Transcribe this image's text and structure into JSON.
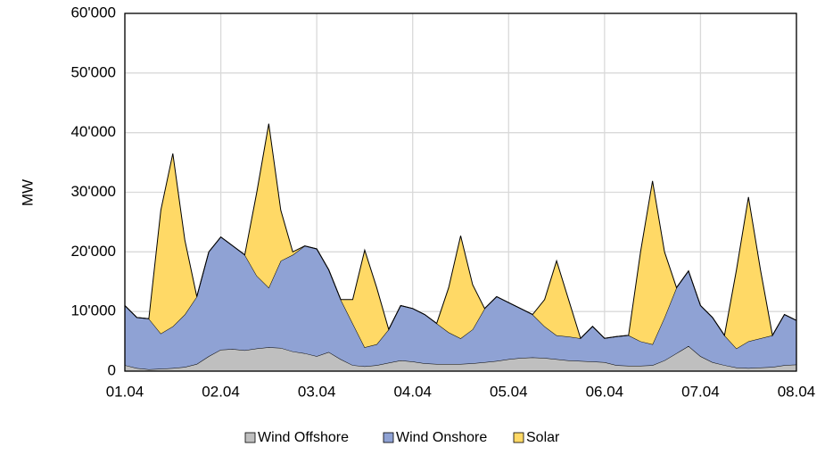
{
  "chart_data": {
    "type": "stacked_area",
    "ylabel": "MW",
    "x": [
      0,
      0.125,
      0.25,
      0.375,
      0.5,
      0.625,
      0.75,
      0.875,
      1,
      1.125,
      1.25,
      1.375,
      1.5,
      1.625,
      1.75,
      1.875,
      2,
      2.125,
      2.25,
      2.375,
      2.5,
      2.625,
      2.75,
      2.875,
      3,
      3.125,
      3.25,
      3.375,
      3.5,
      3.625,
      3.75,
      3.875,
      4,
      4.125,
      4.25,
      4.375,
      4.5,
      4.625,
      4.75,
      4.875,
      5,
      5.125,
      5.25,
      5.375,
      5.5,
      5.625,
      5.75,
      5.875,
      6,
      6.125,
      6.25,
      6.375,
      6.5,
      6.625,
      6.75,
      6.875,
      7
    ],
    "series": [
      {
        "name": "Wind Offshore",
        "color": "#bfbfbf",
        "values": [
          1000,
          500,
          300,
          400,
          500,
          700,
          1200,
          2500,
          3600,
          3700,
          3500,
          3800,
          4000,
          3900,
          3300,
          3000,
          2500,
          3200,
          2000,
          1000,
          800,
          1000,
          1400,
          1800,
          1600,
          1300,
          1200,
          1200,
          1200,
          1300,
          1500,
          1700,
          2000,
          2200,
          2300,
          2200,
          2000,
          1800,
          1700,
          1600,
          1500,
          1000,
          900,
          900,
          1000,
          1800,
          3000,
          4200,
          2500,
          1500,
          1000,
          600,
          500,
          600,
          700,
          1000,
          1100
        ]
      },
      {
        "name": "Wind Onshore",
        "color": "#8fa2d4",
        "values": [
          10000,
          8500,
          8500,
          5900,
          7000,
          8800,
          11300,
          17500,
          18900,
          17300,
          16000,
          12200,
          10000,
          14600,
          16200,
          18000,
          18000,
          13800,
          10000,
          7000,
          3200,
          3500,
          5600,
          9200,
          8900,
          8200,
          6800,
          5300,
          4300,
          5700,
          9000,
          10800,
          9500,
          8300,
          7200,
          5300,
          4000,
          4000,
          3800,
          5900,
          4000,
          4800,
          5100,
          4100,
          3500,
          7200,
          11000,
          12600,
          8500,
          7500,
          5000,
          3200,
          4500,
          4900,
          5300,
          8500,
          7400
        ]
      },
      {
        "name": "Solar",
        "color": "#ffd966",
        "values": [
          0,
          0,
          0,
          20700,
          29000,
          12500,
          0,
          0,
          0,
          0,
          0,
          14000,
          27500,
          8500,
          500,
          0,
          0,
          0,
          0,
          4000,
          16300,
          9500,
          0,
          0,
          0,
          0,
          0,
          7500,
          17200,
          7500,
          0,
          0,
          0,
          0,
          0,
          4500,
          12500,
          6200,
          0,
          0,
          0,
          0,
          0,
          15000,
          27400,
          11000,
          0,
          0,
          0,
          0,
          0,
          13200,
          24200,
          11500,
          0,
          0,
          0
        ]
      }
    ],
    "xlim": [
      0,
      7
    ],
    "xticks": [
      {
        "value": 0,
        "label": "01.04"
      },
      {
        "value": 1,
        "label": "02.04"
      },
      {
        "value": 2,
        "label": "03.04"
      },
      {
        "value": 3,
        "label": "04.04"
      },
      {
        "value": 4,
        "label": "05.04"
      },
      {
        "value": 5,
        "label": "06.04"
      },
      {
        "value": 6,
        "label": "07.04"
      },
      {
        "value": 7,
        "label": "08.04"
      }
    ],
    "ylim": [
      0,
      60000
    ],
    "yticks": [
      {
        "value": 0,
        "label": "0"
      },
      {
        "value": 10000,
        "label": "10'000"
      },
      {
        "value": 20000,
        "label": "20'000"
      },
      {
        "value": 30000,
        "label": "30'000"
      },
      {
        "value": 40000,
        "label": "40'000"
      },
      {
        "value": 50000,
        "label": "50'000"
      },
      {
        "value": 60000,
        "label": "60'000"
      }
    ],
    "grid": true,
    "legend": "bottom"
  }
}
